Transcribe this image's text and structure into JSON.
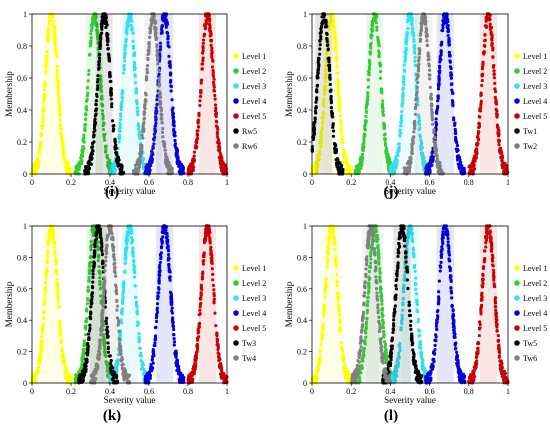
{
  "chart_data": [
    {
      "type": "scatter",
      "panel_label": "(i)",
      "xlabel": "Severity value",
      "ylabel": "Membership",
      "xlim": [
        0,
        1
      ],
      "ylim": [
        0,
        1
      ],
      "xticks": [
        "0",
        "0.2",
        "0.4",
        "0.6",
        "0.8",
        "1"
      ],
      "yticks": [
        "0",
        "0.2",
        "0.4",
        "0.6",
        "0.8",
        "1"
      ],
      "grid": false,
      "legend": "right",
      "series": [
        {
          "name": "Level 1",
          "color": "#ffff00",
          "center": 0.1,
          "width": 0.08,
          "peak": 1
        },
        {
          "name": "Level 2",
          "color": "#33cc33",
          "center": 0.32,
          "width": 0.08,
          "peak": 1
        },
        {
          "name": "Level 3",
          "color": "#33e0f0",
          "center": 0.5,
          "width": 0.08,
          "peak": 1
        },
        {
          "name": "Level 4",
          "color": "#0000dd",
          "center": 0.68,
          "width": 0.08,
          "peak": 1
        },
        {
          "name": "Level 5",
          "color": "#cc0000",
          "center": 0.9,
          "width": 0.08,
          "peak": 1
        },
        {
          "name": "Rw5",
          "color": "#000000",
          "center": 0.37,
          "width": 0.08,
          "peak": 1
        },
        {
          "name": "Rw6",
          "color": "#808080",
          "center": 0.62,
          "width": 0.08,
          "peak": 1
        }
      ]
    },
    {
      "type": "scatter",
      "panel_label": "(j)",
      "xlabel": "Severity value",
      "ylabel": "Membership",
      "xlim": [
        0,
        1
      ],
      "ylim": [
        0,
        1
      ],
      "xticks": [
        "0",
        "0.2",
        "0.4",
        "0.6",
        "0.8",
        "1"
      ],
      "yticks": [
        "0",
        "0.2",
        "0.4",
        "0.6",
        "0.8",
        "1"
      ],
      "grid": false,
      "legend": "right",
      "series": [
        {
          "name": "Level 1",
          "color": "#ffff00",
          "center": 0.1,
          "width": 0.08,
          "peak": 1
        },
        {
          "name": "Level 2",
          "color": "#33cc33",
          "center": 0.32,
          "width": 0.08,
          "peak": 1
        },
        {
          "name": "Level 3",
          "color": "#33e0f0",
          "center": 0.5,
          "width": 0.08,
          "peak": 1
        },
        {
          "name": "Level 4",
          "color": "#0000dd",
          "center": 0.68,
          "width": 0.08,
          "peak": 1
        },
        {
          "name": "Level 5",
          "color": "#cc0000",
          "center": 0.9,
          "width": 0.08,
          "peak": 1
        },
        {
          "name": "Tw1",
          "color": "#000000",
          "center": 0.06,
          "width": 0.08,
          "peak": 1
        },
        {
          "name": "Tw2",
          "color": "#808080",
          "center": 0.57,
          "width": 0.08,
          "peak": 1
        }
      ]
    },
    {
      "type": "scatter",
      "panel_label": "(k)",
      "xlabel": "Severity value",
      "ylabel": "Membership",
      "xlim": [
        0,
        1
      ],
      "ylim": [
        0,
        1
      ],
      "xticks": [
        "0",
        "0.2",
        "0.4",
        "0.6",
        "0.8",
        "1"
      ],
      "yticks": [
        "0",
        "0.2",
        "0.4",
        "0.6",
        "0.8",
        "1"
      ],
      "grid": false,
      "legend": "right",
      "series": [
        {
          "name": "Level 1",
          "color": "#ffff00",
          "center": 0.1,
          "width": 0.08,
          "peak": 1
        },
        {
          "name": "Level 2",
          "color": "#33cc33",
          "center": 0.32,
          "width": 0.08,
          "peak": 1
        },
        {
          "name": "Level 3",
          "color": "#33e0f0",
          "center": 0.5,
          "width": 0.08,
          "peak": 1
        },
        {
          "name": "Level 4",
          "color": "#0000dd",
          "center": 0.68,
          "width": 0.08,
          "peak": 1
        },
        {
          "name": "Level 5",
          "color": "#cc0000",
          "center": 0.9,
          "width": 0.08,
          "peak": 1
        },
        {
          "name": "Tw3",
          "color": "#000000",
          "center": 0.34,
          "width": 0.08,
          "peak": 1
        },
        {
          "name": "Tw4",
          "color": "#808080",
          "center": 0.4,
          "width": 0.08,
          "peak": 1
        }
      ]
    },
    {
      "type": "scatter",
      "panel_label": "(l)",
      "xlabel": "Severity value",
      "ylabel": "Membership",
      "xlim": [
        0,
        1
      ],
      "ylim": [
        0,
        1
      ],
      "xticks": [
        "0",
        "0.2",
        "0.4",
        "0.6",
        "0.8",
        "1"
      ],
      "yticks": [
        "0",
        "0.2",
        "0.4",
        "0.6",
        "0.8",
        "1"
      ],
      "grid": false,
      "legend": "right",
      "series": [
        {
          "name": "Level 1",
          "color": "#ffff00",
          "center": 0.1,
          "width": 0.08,
          "peak": 1
        },
        {
          "name": "Level 2",
          "color": "#33cc33",
          "center": 0.32,
          "width": 0.08,
          "peak": 1
        },
        {
          "name": "Level 3",
          "color": "#33e0f0",
          "center": 0.5,
          "width": 0.08,
          "peak": 1
        },
        {
          "name": "Level 4",
          "color": "#0000dd",
          "center": 0.68,
          "width": 0.08,
          "peak": 1
        },
        {
          "name": "Level 5",
          "color": "#cc0000",
          "center": 0.9,
          "width": 0.08,
          "peak": 1
        },
        {
          "name": "Tw5",
          "color": "#000000",
          "center": 0.46,
          "width": 0.08,
          "peak": 1
        },
        {
          "name": "Tw6",
          "color": "#808080",
          "center": 0.3,
          "width": 0.08,
          "peak": 1
        }
      ]
    }
  ]
}
